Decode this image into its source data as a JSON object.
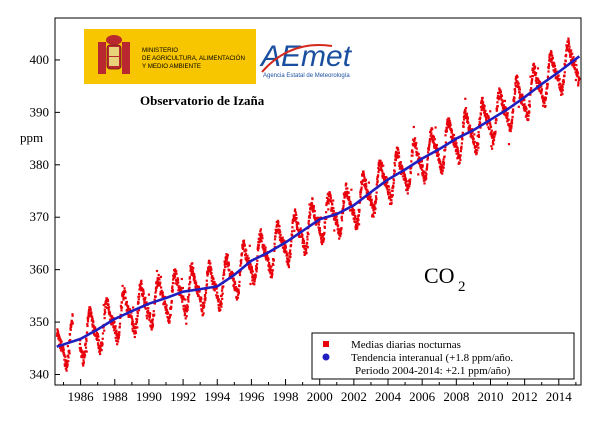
{
  "header": {
    "ministry_lines": [
      "MINISTERIO",
      "DE AGRICULTURA, ALIMENTACIÓN",
      "Y MEDIO AMBIENTE"
    ],
    "aemet_logo_text": "AEmet",
    "aemet_subtitle": "Agencia Estatal de Meteorología",
    "observatory": "Observatorio de Izaña"
  },
  "colors": {
    "daily": "#e8000b",
    "trend": "#1f1fbf",
    "ministry_bg": "#f7c600",
    "aemet_blue": "#1a4fa0",
    "aemet_red": "#d42a1e"
  },
  "chart_data": {
    "type": "scatter",
    "ylabel": "ppm",
    "xlim": [
      1984.5,
      2015.3
    ],
    "ylim": [
      338,
      408
    ],
    "x_ticks": [
      "1986",
      "1988",
      "1990",
      "1992",
      "1994",
      "1996",
      "1998",
      "2000",
      "2002",
      "2004",
      "2006",
      "2008",
      "2010",
      "2012",
      "2014"
    ],
    "y_ticks": [
      "340",
      "350",
      "360",
      "370",
      "380",
      "390",
      "400"
    ],
    "annotation": {
      "main": "CO",
      "subscript": "2"
    },
    "legend": {
      "placement": "bottom-right",
      "items": [
        {
          "label": "Medias diarias nocturnas",
          "marker": "square"
        },
        {
          "label": "Tendencia interanual (+1.8 ppm/año.",
          "marker": "circle"
        }
      ],
      "extra_line": "Periodo 2004-2014: +2.1 ppm/año)"
    },
    "series": [
      {
        "name": "Medias diarias nocturnas",
        "kind": "daily",
        "seasonal_amplitude_ppm": 3.5
      },
      {
        "name": "Tendencia interanual (+1.8 ppm/año.",
        "kind": "trend",
        "x": [
          1984.6,
          1986,
          1987,
          1988,
          1989,
          1990,
          1991,
          1992,
          1993,
          1994,
          1995,
          1996,
          1997,
          1998,
          1999,
          2000,
          2001,
          2002,
          2003,
          2004,
          2005,
          2006,
          2007,
          2008,
          2009,
          2010,
          2011,
          2012,
          2013,
          2014,
          2015.2
        ],
        "values": [
          345.3,
          346.8,
          348.6,
          350.6,
          352.1,
          353.5,
          354.6,
          355.8,
          356.3,
          356.8,
          359.0,
          361.7,
          363.3,
          365.2,
          367.4,
          369.6,
          370.6,
          372.3,
          374.8,
          377.2,
          379.1,
          381.2,
          383.0,
          385.0,
          386.6,
          388.6,
          390.6,
          392.9,
          395.4,
          397.7,
          400.7
        ]
      }
    ]
  }
}
